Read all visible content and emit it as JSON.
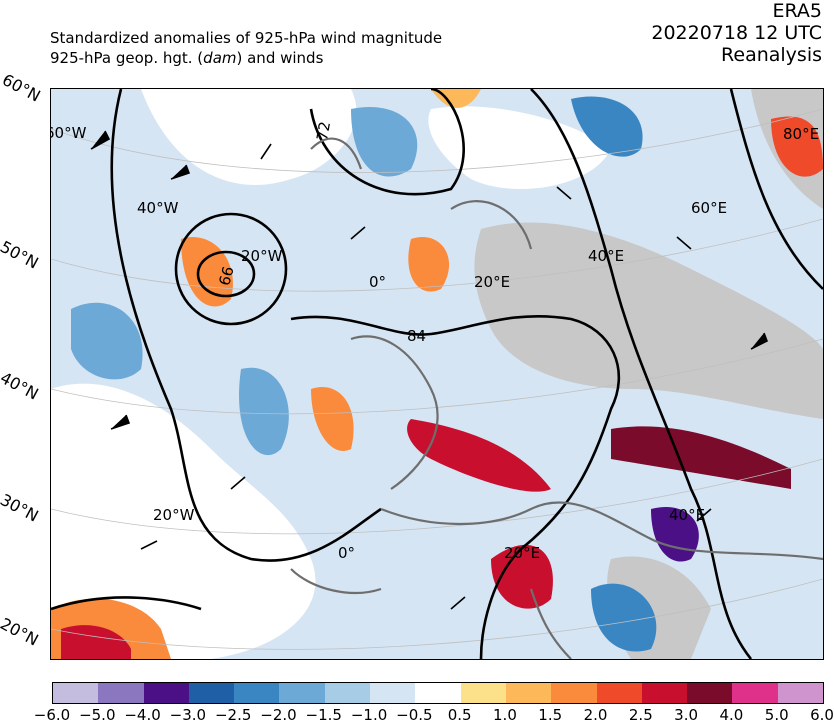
{
  "header": {
    "title_line1": "Standardized anomalies of 925-hPa wind magnitude",
    "title_line2_a": "925-hPa geop. hgt. (",
    "title_line2_unit": "dam",
    "title_line2_b": ") and winds",
    "source": "ERA5",
    "datetime": "20220718 12 UTC",
    "dataset": "Reanalysis"
  },
  "map": {
    "latitude_labels": [
      "60°N",
      "50°N",
      "40°N",
      "30°N",
      "20°N"
    ],
    "longitude_labels": [
      "60°W",
      "40°W",
      "20°W",
      "0°",
      "20°E",
      "40°E",
      "60°E",
      "80°E",
      "20°W",
      "0°",
      "20°E",
      "40°E"
    ],
    "contour_labels": [
      "72",
      "66",
      "84"
    ],
    "colors": {
      "land_grey": "#c8c8c8",
      "contour": "#000000",
      "coast": "#6e6e6e"
    }
  },
  "colorbar": {
    "colors": [
      "#c4bde0",
      "#8b76c0",
      "#4b0f86",
      "#1f5fa6",
      "#3a86c3",
      "#6ca9d6",
      "#a6cce6",
      "#d6e5f3",
      "#ffffff",
      "#fde08a",
      "#fdb85a",
      "#fa8b3c",
      "#ef4a2a",
      "#c8102e",
      "#7a0b2b",
      "#e0318a",
      "#cf94cd"
    ],
    "tick_labels": [
      "−6.0",
      "−5.0",
      "−4.0",
      "−3.0",
      "−2.5",
      "−2.0",
      "−1.5",
      "−1.0",
      "−0.5",
      "0.5",
      "1.0",
      "1.5",
      "2.0",
      "2.5",
      "3.0",
      "4.0",
      "5.0",
      "6.0"
    ]
  }
}
